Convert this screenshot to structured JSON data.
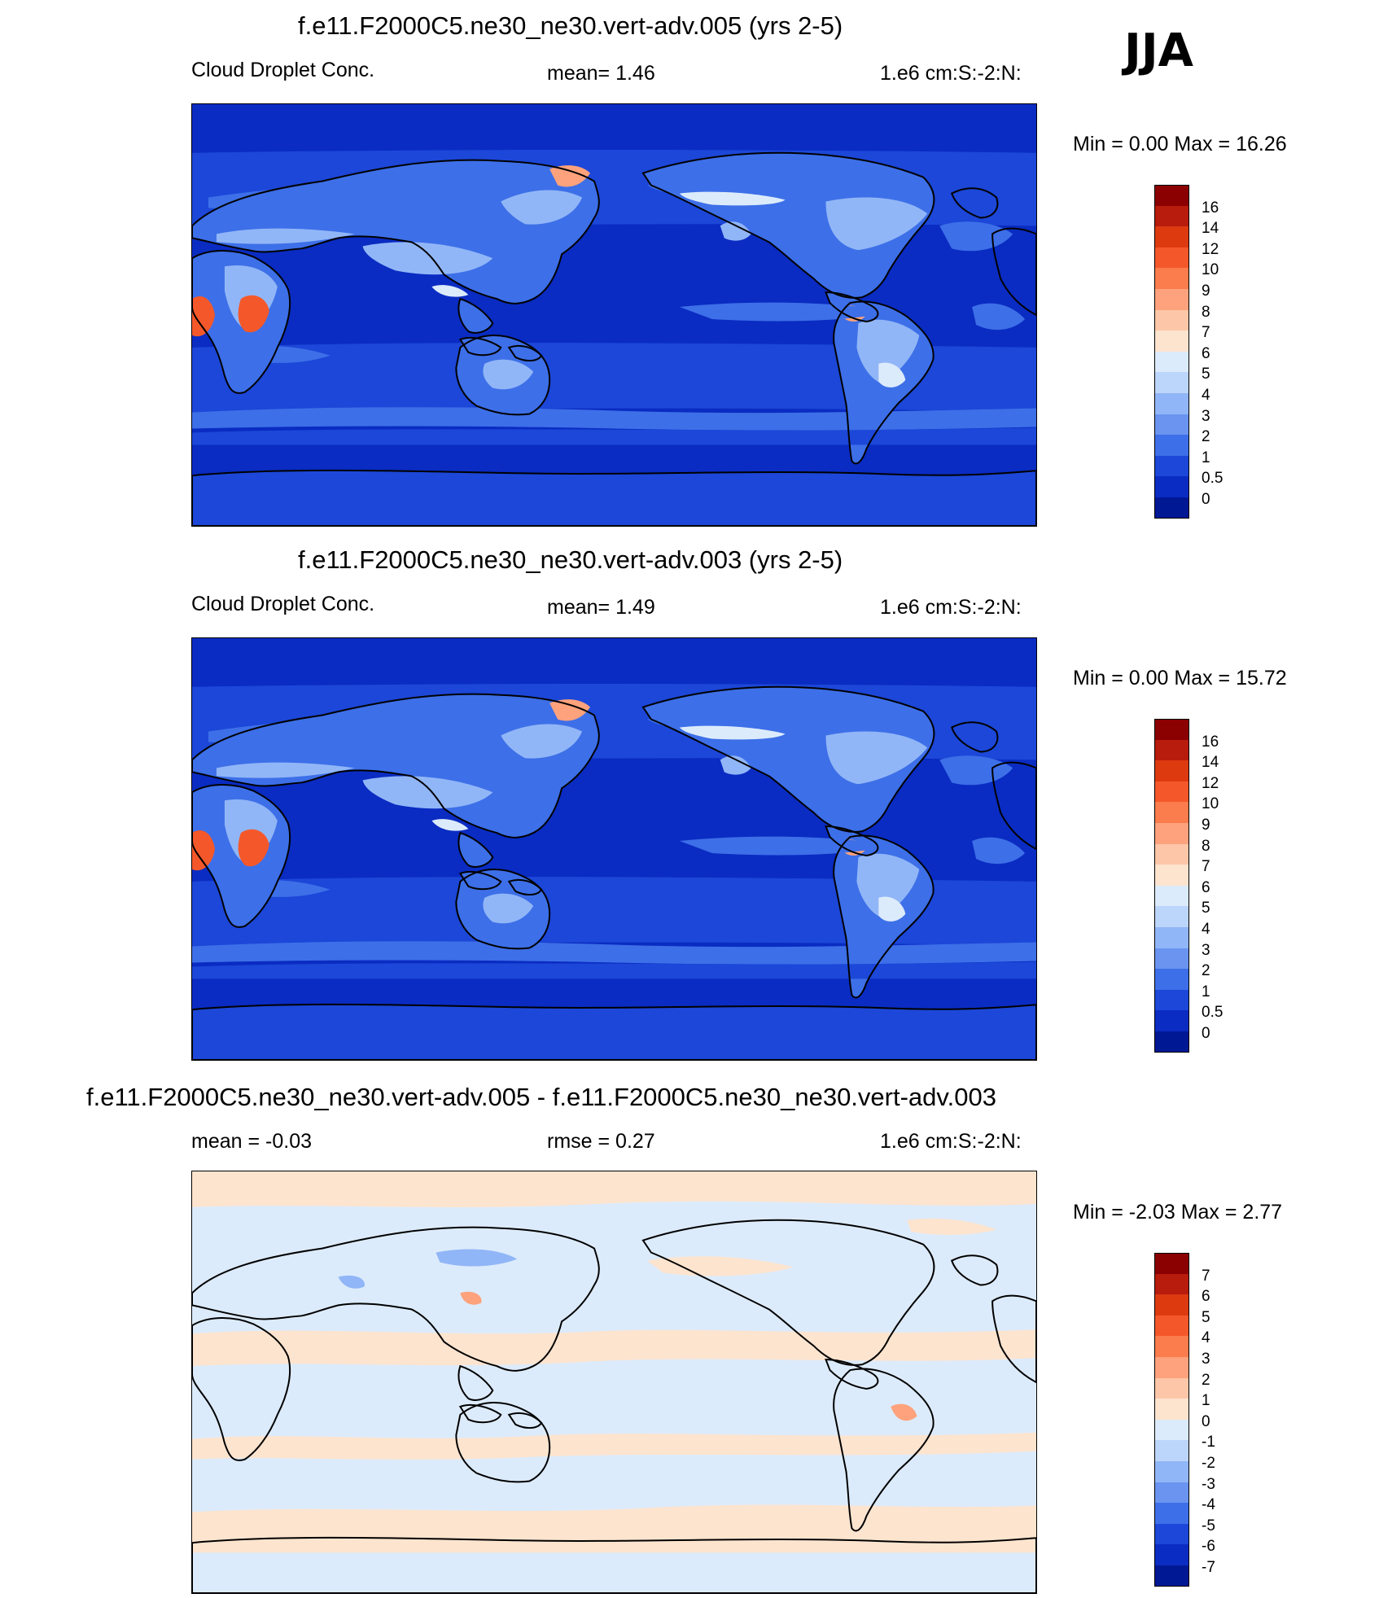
{
  "season": "JJA",
  "panels": [
    {
      "title": "f.e11.F2000C5.ne30_ne30.vert-adv.005 (yrs 2-5)",
      "left_label": "Cloud Droplet Conc.",
      "center_label": "mean=   1.46",
      "right_label": "1.e6 cm:S:-2:N:",
      "minmax": "Min =    0.00 Max =  16.26",
      "colorbar": {
        "labels": [
          "16",
          "14",
          "12",
          "10",
          "9",
          "8",
          "7",
          "6",
          "5",
          "4",
          "3",
          "2",
          "1",
          "0.5",
          "0"
        ],
        "colors": [
          "#8b0000",
          "#b71c0c",
          "#de3a10",
          "#f4582a",
          "#fb7c4c",
          "#fda27c",
          "#fdc6a8",
          "#fde4cf",
          "#dcebfb",
          "#bcd5fa",
          "#91b6f7",
          "#6a94ef",
          "#3d6fe8",
          "#1c47d8",
          "#0a2cc2",
          "#001893"
        ]
      }
    },
    {
      "title": "f.e11.F2000C5.ne30_ne30.vert-adv.003 (yrs 2-5)",
      "left_label": "Cloud Droplet Conc.",
      "center_label": "mean=   1.49",
      "right_label": "1.e6 cm:S:-2:N:",
      "minmax": "Min =    0.00 Max =  15.72",
      "colorbar": {
        "labels": [
          "16",
          "14",
          "12",
          "10",
          "9",
          "8",
          "7",
          "6",
          "5",
          "4",
          "3",
          "2",
          "1",
          "0.5",
          "0"
        ],
        "colors": [
          "#8b0000",
          "#b71c0c",
          "#de3a10",
          "#f4582a",
          "#fb7c4c",
          "#fda27c",
          "#fdc6a8",
          "#fde4cf",
          "#dcebfb",
          "#bcd5fa",
          "#91b6f7",
          "#6a94ef",
          "#3d6fe8",
          "#1c47d8",
          "#0a2cc2",
          "#001893"
        ]
      }
    },
    {
      "title": "f.e11.F2000C5.ne30_ne30.vert-adv.005 - f.e11.F2000C5.ne30_ne30.vert-adv.003",
      "left_label": "mean =  -0.03",
      "center_label": "rmse =   0.27",
      "right_label": "1.e6 cm:S:-2:N:",
      "minmax": "Min =  -2.03 Max =   2.77",
      "colorbar": {
        "labels": [
          "7",
          "6",
          "5",
          "4",
          "3",
          "2",
          "1",
          "0",
          "-1",
          "-2",
          "-3",
          "-4",
          "-5",
          "-6",
          "-7"
        ],
        "colors": [
          "#8b0000",
          "#b71c0c",
          "#de3a10",
          "#f4582a",
          "#fb7c4c",
          "#fda27c",
          "#fdc6a8",
          "#fde4cf",
          "#dcebfb",
          "#bcd5fa",
          "#91b6f7",
          "#6a94ef",
          "#3d6fe8",
          "#1c47d8",
          "#0a2cc2",
          "#001893"
        ]
      }
    }
  ],
  "map_colors": {
    "ocean_deep": "#0a2cc2",
    "ocean_mid": "#1c47d8",
    "ocean_light": "#3d6fe8",
    "land_light": "#91b6f7",
    "land_pale": "#dcebfb",
    "hot": "#f4582a",
    "warm": "#fda27c",
    "diff_pos": "#fde4cf",
    "diff_neg": "#dcebfb"
  }
}
